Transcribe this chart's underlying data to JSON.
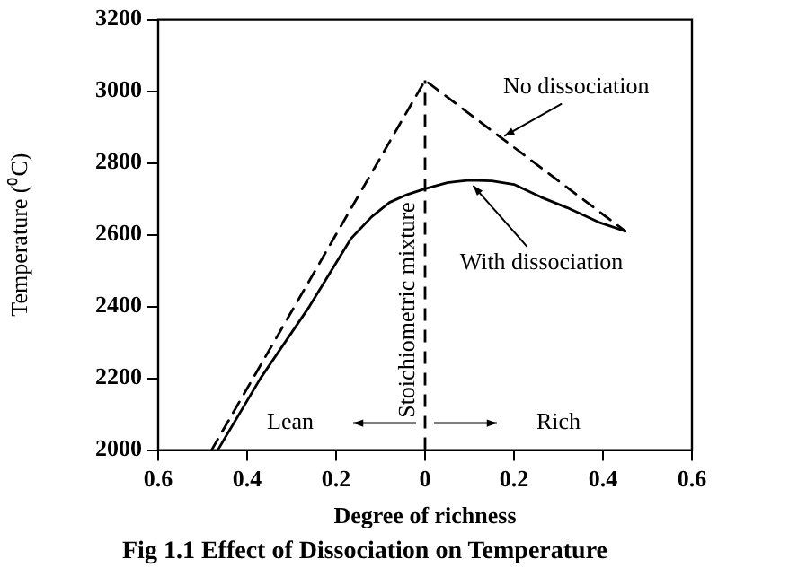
{
  "chart_data": {
    "type": "line",
    "title": "Fig 1.1 Effect of Dissociation on Temperature",
    "xlabel": "Degree of richness",
    "ylabel": "Temperature (⁰C)",
    "xlim": [
      -0.6,
      0.6
    ],
    "xticks": [
      {
        "value": -0.6,
        "label": "0.6"
      },
      {
        "value": -0.4,
        "label": "0.4"
      },
      {
        "value": -0.2,
        "label": "0.2"
      },
      0,
      0.2,
      0.4,
      0.6
    ],
    "ylim": [
      2000,
      3200
    ],
    "yticks": [
      2000,
      2200,
      2400,
      2600,
      2800,
      3000,
      3200
    ],
    "grid": false,
    "legend": false,
    "marker": "none",
    "series": [
      {
        "color": "#000000",
        "line_style": "dashed",
        "x": [
          -0.48,
          0,
          0.45
        ],
        "values": [
          2000,
          3030,
          2610
        ]
      },
      {
        "color": "#000000",
        "line_style": "solid",
        "x": [
          -0.466,
          -0.37,
          -0.26,
          -0.166,
          -0.12,
          -0.08,
          -0.04,
          0,
          0.05,
          0.1,
          0.15,
          0.2,
          0.26,
          0.32,
          0.39,
          0.45
        ],
        "values": [
          2000,
          2200,
          2400,
          2590,
          2650,
          2690,
          2712,
          2728,
          2745,
          2752,
          2750,
          2740,
          2705,
          2675,
          2635,
          2610
        ]
      }
    ],
    "ref_lines": [
      {
        "axis": "x",
        "value": 0,
        "label": "Stoichiometric mixture",
        "line_style": "dashed",
        "color": "#000000"
      }
    ],
    "annotations": [
      {
        "text": "No dissociation",
        "x": 0.17,
        "y": 2860
      },
      {
        "text": "With dissociation",
        "x": 0.1,
        "y": 2752
      },
      "Lean",
      "Rich"
    ]
  }
}
